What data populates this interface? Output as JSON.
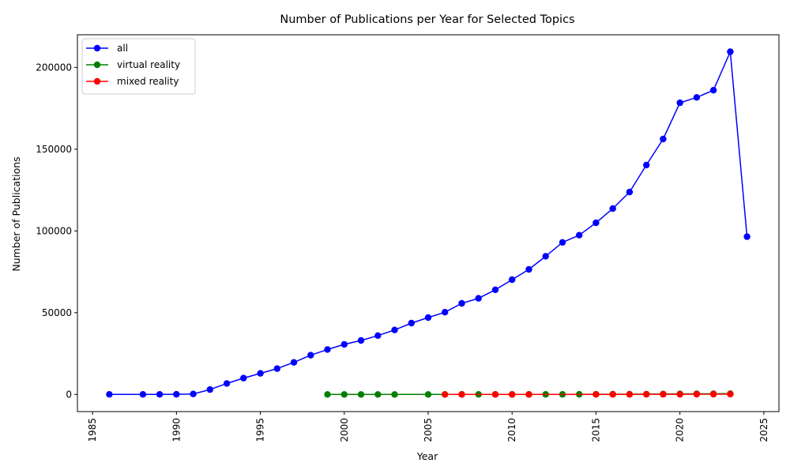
{
  "chart_data": {
    "type": "line",
    "title": "Number of Publications per Year for Selected Topics",
    "xlabel": "Year",
    "ylabel": "Number of Publications",
    "xlim": [
      1984.1,
      2025.9
    ],
    "ylim": [
      -10500,
      220000
    ],
    "xticks": [
      1985,
      1990,
      1995,
      2000,
      2005,
      2010,
      2015,
      2020,
      2025
    ],
    "yticks": [
      0,
      50000,
      100000,
      150000,
      200000
    ],
    "grid": false,
    "legend_position": "upper-left",
    "series": [
      {
        "name": "all",
        "color": "#0000ff",
        "x": [
          1986,
          1988,
          1989,
          1990,
          1991,
          1992,
          1993,
          1994,
          1995,
          1996,
          1997,
          1998,
          1999,
          2000,
          2001,
          2002,
          2003,
          2004,
          2005,
          2006,
          2007,
          2008,
          2009,
          2010,
          2011,
          2012,
          2013,
          2014,
          2015,
          2016,
          2017,
          2018,
          2019,
          2020,
          2021,
          2022,
          2023,
          2024
        ],
        "y": [
          20,
          30,
          40,
          60,
          300,
          3000,
          6700,
          10000,
          12900,
          15800,
          19600,
          24000,
          27500,
          30600,
          33000,
          36000,
          39400,
          43600,
          47000,
          50300,
          55700,
          58800,
          64000,
          70200,
          76500,
          84500,
          93000,
          97400,
          105000,
          113700,
          123800,
          140300,
          156200,
          178400,
          181700,
          186100,
          209600,
          96500
        ]
      },
      {
        "name": "virtual reality",
        "color": "#008000",
        "x": [
          1999,
          2000,
          2001,
          2002,
          2003,
          2005,
          2006,
          2007,
          2008,
          2009,
          2010,
          2011,
          2012,
          2013,
          2014,
          2015,
          2016,
          2017,
          2018,
          2019,
          2020,
          2021,
          2022,
          2023
        ],
        "y": [
          5,
          5,
          5,
          6,
          6,
          8,
          10,
          12,
          15,
          18,
          22,
          28,
          35,
          45,
          60,
          80,
          110,
          150,
          200,
          260,
          320,
          360,
          400,
          450
        ]
      },
      {
        "name": "mixed reality",
        "color": "#ff0000",
        "x": [
          2006,
          2007,
          2009,
          2010,
          2011,
          2015,
          2016,
          2017,
          2018,
          2019,
          2020,
          2021,
          2022,
          2023
        ],
        "y": [
          2,
          3,
          4,
          5,
          6,
          15,
          25,
          40,
          60,
          80,
          100,
          120,
          140,
          160
        ]
      }
    ]
  }
}
